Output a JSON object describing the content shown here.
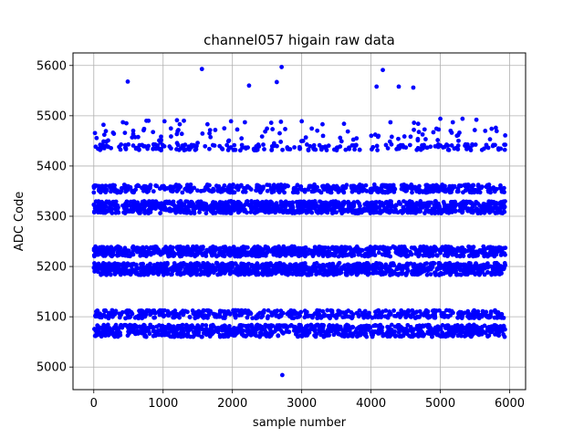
{
  "chart_data": {
    "type": "scatter",
    "title": "channel057 higain raw data",
    "xlabel": "sample number",
    "ylabel": "ADC Code",
    "xlim": [
      -300,
      6230
    ],
    "ylim": [
      4955,
      5625
    ],
    "xticks": [
      0,
      1000,
      2000,
      3000,
      4000,
      5000,
      6000
    ],
    "yticks": [
      5000,
      5100,
      5200,
      5300,
      5400,
      5500,
      5600
    ],
    "grid": true,
    "marker_color": "#0000ff",
    "x_range": [
      0,
      5940
    ],
    "bands": [
      {
        "center": 5072,
        "spread": 12,
        "points": 900
      },
      {
        "center": 5105,
        "spread": 8,
        "points": 500
      },
      {
        "center": 5195,
        "spread": 12,
        "points": 1100
      },
      {
        "center": 5230,
        "spread": 10,
        "points": 900
      },
      {
        "center": 5318,
        "spread": 12,
        "points": 1100
      },
      {
        "center": 5355,
        "spread": 8,
        "points": 500
      },
      {
        "center": 5437,
        "spread": 6,
        "points": 220
      },
      {
        "center": 5460,
        "spread": 15,
        "points": 90
      }
    ],
    "points": [
      {
        "x": 490,
        "y": 5568
      },
      {
        "x": 1560,
        "y": 5593
      },
      {
        "x": 2240,
        "y": 5560
      },
      {
        "x": 2640,
        "y": 5567
      },
      {
        "x": 2710,
        "y": 5597
      },
      {
        "x": 4080,
        "y": 5558
      },
      {
        "x": 4170,
        "y": 5591
      },
      {
        "x": 4400,
        "y": 5558
      },
      {
        "x": 4610,
        "y": 5556
      },
      {
        "x": 2720,
        "y": 4984
      },
      {
        "x": 140,
        "y": 5482
      },
      {
        "x": 420,
        "y": 5487
      },
      {
        "x": 470,
        "y": 5485
      },
      {
        "x": 760,
        "y": 5490
      },
      {
        "x": 790,
        "y": 5490
      },
      {
        "x": 1020,
        "y": 5489
      },
      {
        "x": 1200,
        "y": 5491
      },
      {
        "x": 1240,
        "y": 5483
      },
      {
        "x": 1300,
        "y": 5490
      },
      {
        "x": 1640,
        "y": 5483
      },
      {
        "x": 1980,
        "y": 5489
      },
      {
        "x": 2180,
        "y": 5487
      },
      {
        "x": 2560,
        "y": 5486
      },
      {
        "x": 2700,
        "y": 5488
      },
      {
        "x": 3000,
        "y": 5489
      },
      {
        "x": 3300,
        "y": 5483
      },
      {
        "x": 3610,
        "y": 5484
      },
      {
        "x": 4280,
        "y": 5487
      },
      {
        "x": 4620,
        "y": 5486
      },
      {
        "x": 4680,
        "y": 5484
      },
      {
        "x": 5000,
        "y": 5494
      },
      {
        "x": 5180,
        "y": 5487
      },
      {
        "x": 5320,
        "y": 5494
      },
      {
        "x": 5520,
        "y": 5492
      },
      {
        "x": 5740,
        "y": 5474
      },
      {
        "x": 5800,
        "y": 5476
      }
    ]
  }
}
